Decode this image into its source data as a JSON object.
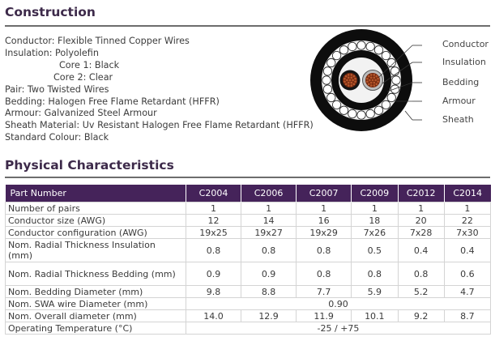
{
  "construction": {
    "title": "Construction",
    "lines": [
      "Conductor: Flexible Tinned Copper Wires",
      "Insulation: Polyolefin",
      "Core 1: Black",
      "Core 2: Clear",
      "Pair: Two Twisted Wires",
      "Bedding: Halogen Free Flame Retardant (HFFR)",
      "Armour: Galvanized Steel Armour",
      "Sheath Material: Uv Resistant Halogen Free Flame Retardant (HFFR)",
      "Standard Colour: Black"
    ],
    "diagram_labels": {
      "conductor": "Conductor",
      "insulation": "Insulation",
      "bedding": "Bedding",
      "armour": "Armour",
      "sheath": "Sheath"
    }
  },
  "physical": {
    "title": "Physical Characteristics",
    "header": [
      "Part Number",
      "C2004",
      "C2006",
      "C2007",
      "C2009",
      "C2012",
      "C2014"
    ],
    "rows": [
      {
        "label": "Number of pairs",
        "values": [
          "1",
          "1",
          "1",
          "1",
          "1",
          "1"
        ]
      },
      {
        "label": "Conductor size (AWG)",
        "values": [
          "12",
          "14",
          "16",
          "18",
          "20",
          "22"
        ]
      },
      {
        "label": "Conductor configuration (AWG)",
        "values": [
          "19x25",
          "19x27",
          "19x29",
          "7x26",
          "7x28",
          "7x30"
        ]
      },
      {
        "label": "Nom. Radial Thickness Insulation (mm)",
        "values": [
          "0.8",
          "0.8",
          "0.8",
          "0.5",
          "0.4",
          "0.4"
        ]
      },
      {
        "label": "Nom. Radial Thickness Bedding (mm)",
        "values": [
          "0.9",
          "0.9",
          "0.8",
          "0.8",
          "0.8",
          "0.6"
        ]
      },
      {
        "label": "Nom. Bedding Diameter (mm)",
        "values": [
          "9.8",
          "8.8",
          "7.7",
          "5.9",
          "5.2",
          "4.7"
        ]
      },
      {
        "label": "Nom. SWA wire Diameter (mm)",
        "merged": "0.90"
      },
      {
        "label": "Nom. Overall diameter (mm)",
        "values": [
          "14.0",
          "12.9",
          "11.9",
          "10.1",
          "9.2",
          "8.7"
        ]
      },
      {
        "label": "Operating Temperature (°C)",
        "merged": "-25 / +75"
      }
    ]
  },
  "colors": {
    "header_bg": "#45235a",
    "title": "#3d2a4a",
    "conductor": "#7a2a10"
  }
}
